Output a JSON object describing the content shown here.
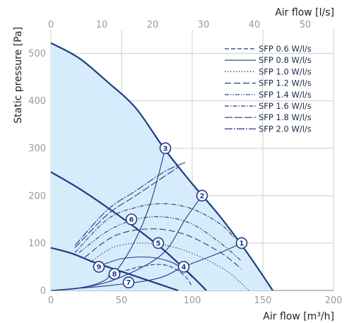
{
  "chart_data": {
    "type": "line",
    "xlabel": "Air flow [m³/h]",
    "x2label": "Air flow [l/s]",
    "ylabel": "Static pressure [Pa]",
    "xlim": [
      0,
      200
    ],
    "x2lim": [
      0,
      55.56
    ],
    "ylim": [
      0,
      550
    ],
    "xticks": [
      "0",
      "50",
      "100",
      "150",
      "200"
    ],
    "x2ticks": [
      "0",
      "10",
      "20",
      "30",
      "40",
      "50"
    ],
    "yticks": [
      "0",
      "100",
      "200",
      "300",
      "400",
      "500"
    ],
    "grid": true,
    "legend_position": "top-right",
    "colors": {
      "curve": "#1f3c88",
      "fill": "#d7ecfa",
      "grid": "#cfcfcf"
    },
    "fan_curves": [
      {
        "x": [
          0,
          20,
          40,
          60,
          80,
          100,
          120,
          140,
          157
        ],
        "y": [
          522,
          490,
          440,
          385,
          300,
          225,
          155,
          75,
          0
        ]
      },
      {
        "x": [
          0,
          20,
          40,
          60,
          80,
          100,
          110
        ],
        "y": [
          250,
          215,
          175,
          132,
          85,
          30,
          0
        ]
      },
      {
        "x": [
          0,
          15,
          30,
          50,
          70,
          90
        ],
        "y": [
          90,
          78,
          60,
          40,
          20,
          0
        ]
      }
    ],
    "sfp_curves": [
      {
        "name": "SFP 0.6 W/l/s",
        "dash": "6,3",
        "x": [
          40,
          60,
          75,
          85,
          95,
          100
        ],
        "y": [
          30,
          48,
          55,
          50,
          30,
          8
        ]
      },
      {
        "name": "SFP 0.8 W/l/s",
        "dash": "",
        "x": [
          33,
          50,
          70,
          85,
          95,
          100
        ],
        "y": [
          50,
          67,
          70,
          60,
          42,
          28
        ]
      },
      {
        "name": "SFP 1.0 W/l/s",
        "dash": "1.5,2.5",
        "x": [
          28,
          45,
          65,
          85,
          105,
          125,
          140
        ],
        "y": [
          60,
          92,
          100,
          93,
          72,
          40,
          0
        ]
      },
      {
        "name": "SFP 1.2 W/l/s",
        "dash": "9,4",
        "x": [
          24,
          45,
          70,
          95,
          120,
          135
        ],
        "y": [
          70,
          115,
          130,
          118,
          80,
          45
        ]
      },
      {
        "name": "SFP 1.4 W/l/s",
        "dash": "6,2,1.5,2,1.5,2",
        "x": [
          20,
          40,
          60,
          80,
          100,
          120,
          135
        ],
        "y": [
          80,
          125,
          150,
          155,
          140,
          100,
          62
        ]
      },
      {
        "name": "SFP 1.6 W/l/s",
        "dash": "6,2,1.5,2",
        "x": [
          17,
          40,
          60,
          80,
          100,
          120,
          130
        ],
        "y": [
          80,
          150,
          175,
          183,
          172,
          140,
          110
        ]
      },
      {
        "name": "SFP 1.8 W/l/s",
        "dash": "11,3",
        "x": [
          17,
          40,
          60,
          80,
          90
        ],
        "y": [
          90,
          160,
          200,
          240,
          260
        ]
      },
      {
        "name": "SFP 2.0 W/l/s",
        "dash": "11,2,2,2",
        "x": [
          17,
          40,
          60,
          80,
          95
        ],
        "y": [
          95,
          170,
          210,
          250,
          270
        ]
      }
    ],
    "system_curves": [
      {
        "x": [
          0,
          20,
          40,
          55,
          70,
          81
        ],
        "y": [
          0,
          5,
          25,
          80,
          180,
          300
        ]
      },
      {
        "x": [
          0,
          30,
          55,
          80,
          95,
          107
        ],
        "y": [
          0,
          10,
          35,
          80,
          150,
          200
        ]
      },
      {
        "x": [
          0,
          40,
          75,
          94,
          120,
          135
        ],
        "y": [
          0,
          10,
          25,
          50,
          80,
          100
        ]
      }
    ],
    "points": [
      {
        "label": "1",
        "x": 135,
        "y": 100
      },
      {
        "label": "2",
        "x": 107,
        "y": 200
      },
      {
        "label": "3",
        "x": 81,
        "y": 300
      },
      {
        "label": "4",
        "x": 94,
        "y": 50
      },
      {
        "label": "5",
        "x": 76,
        "y": 100
      },
      {
        "label": "6",
        "x": 57,
        "y": 150
      },
      {
        "label": "7",
        "x": 55,
        "y": 17
      },
      {
        "label": "8",
        "x": 45,
        "y": 35
      },
      {
        "label": "9",
        "x": 34,
        "y": 50
      }
    ]
  }
}
